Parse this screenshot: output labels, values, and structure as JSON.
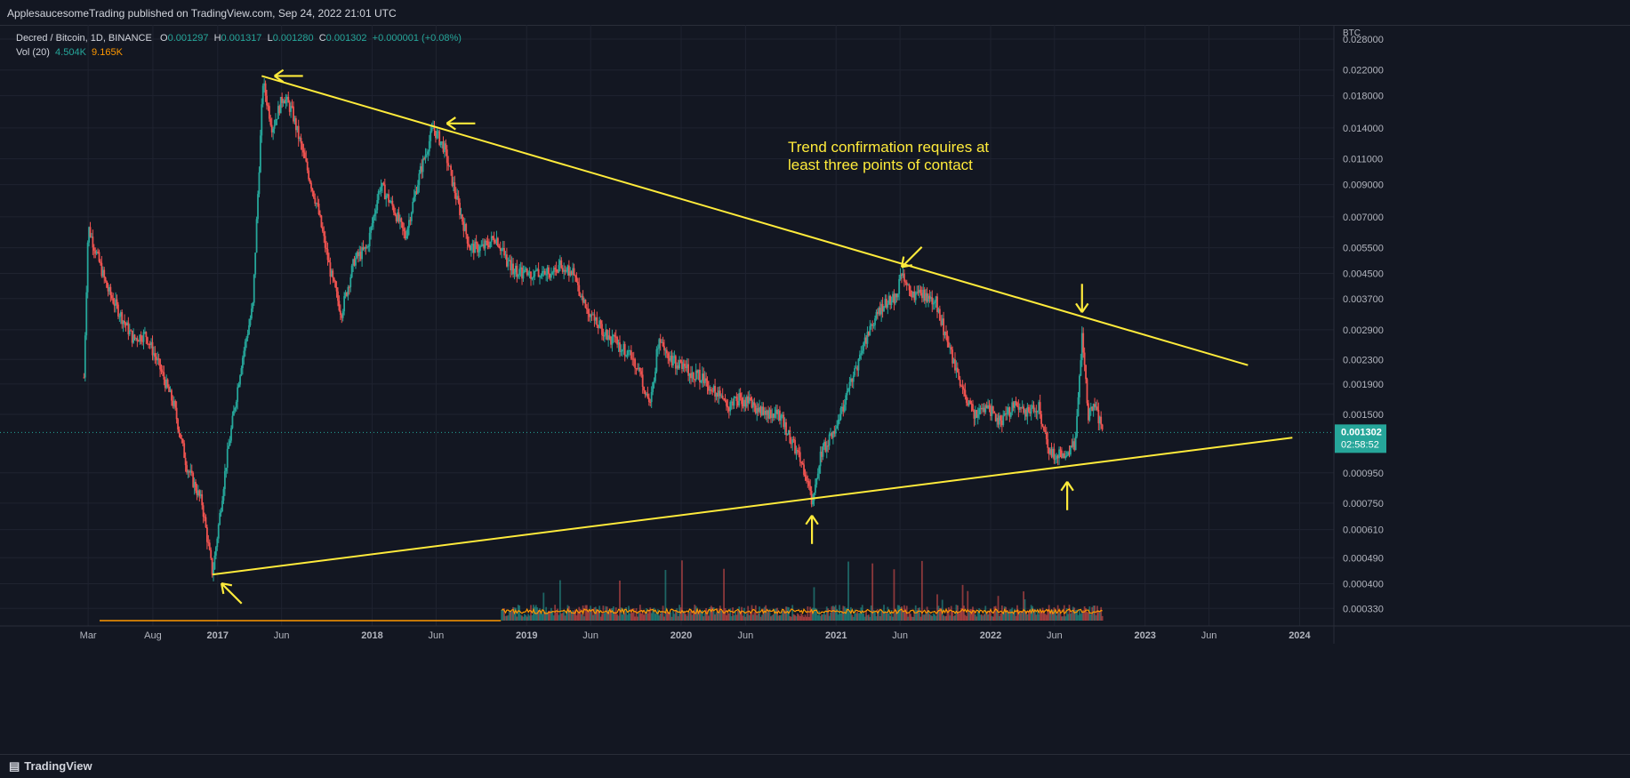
{
  "header": {
    "published": "ApplesaucesomeTrading published on TradingView.com, Sep 24, 2022 21:01 UTC"
  },
  "legend": {
    "symbol": "Decred / Bitcoin, 1D, BINANCE",
    "o_label": "O",
    "o": "0.001297",
    "h_label": "H",
    "h": "0.001317",
    "l_label": "L",
    "l": "0.001280",
    "c_label": "C",
    "c": "0.001302",
    "change": "+0.000001 (+0.08%)",
    "vol_label": "Vol (20)",
    "vol": "4.504K",
    "vol_ma": "9.165K"
  },
  "footer": {
    "brand": "TradingView"
  },
  "colors": {
    "background": "#131722",
    "up": "#26a69a",
    "down": "#ef5350",
    "trendline": "#ffeb3b",
    "volume_ma": "#ff9800",
    "price_tag": "#26a69a"
  },
  "chart_data": {
    "type": "candlestick",
    "symbol": "DCR/BTC",
    "timeframe": "1D",
    "exchange": "BINANCE",
    "y_unit": "BTC",
    "y_scale": "log",
    "ylim": [
      0.0003,
      0.03
    ],
    "xlim": [
      "2016-02-15",
      "2024-03-01"
    ],
    "y_ticks": [
      0.028,
      0.022,
      0.018,
      0.014,
      0.011,
      0.009,
      0.007,
      0.0055,
      0.0045,
      0.0037,
      0.0029,
      0.0023,
      0.0019,
      0.0015,
      0.00095,
      0.00075,
      0.00061,
      0.00049,
      0.0004,
      0.00033
    ],
    "y_tick_labels": [
      "0.028000",
      "0.022000",
      "0.018000",
      "0.014000",
      "0.011000",
      "0.009000",
      "0.007000",
      "0.005500",
      "0.004500",
      "0.003700",
      "0.002900",
      "0.002300",
      "0.001900",
      "0.001500",
      "0.000950",
      "0.000750",
      "0.000610",
      "0.000490",
      "0.000400",
      "0.000330"
    ],
    "x_ticks": [
      {
        "label": "Mar",
        "date": "2016-03-01"
      },
      {
        "label": "Aug",
        "date": "2016-08-01"
      },
      {
        "label": "2017",
        "date": "2017-01-01"
      },
      {
        "label": "Jun",
        "date": "2017-06-01"
      },
      {
        "label": "2018",
        "date": "2018-01-01"
      },
      {
        "label": "Jun",
        "date": "2018-06-01"
      },
      {
        "label": "2019",
        "date": "2019-01-01"
      },
      {
        "label": "Jun",
        "date": "2019-06-01"
      },
      {
        "label": "2020",
        "date": "2020-01-01"
      },
      {
        "label": "Jun",
        "date": "2020-06-01"
      },
      {
        "label": "2021",
        "date": "2021-01-01"
      },
      {
        "label": "Jun",
        "date": "2021-06-01"
      },
      {
        "label": "2022",
        "date": "2022-01-01"
      },
      {
        "label": "Jun",
        "date": "2022-06-01"
      },
      {
        "label": "2023",
        "date": "2023-01-01"
      },
      {
        "label": "Jun",
        "date": "2023-06-01"
      },
      {
        "label": "2024",
        "date": "2024-01-01"
      }
    ],
    "price_path": [
      [
        "2016-02-20",
        0.002
      ],
      [
        "2016-03-01",
        0.0065
      ],
      [
        "2016-04-15",
        0.004
      ],
      [
        "2016-05-10",
        0.0034
      ],
      [
        "2016-06-15",
        0.0027
      ],
      [
        "2016-07-15",
        0.0028
      ],
      [
        "2016-08-15",
        0.0022
      ],
      [
        "2016-09-20",
        0.0016
      ],
      [
        "2016-10-20",
        0.001
      ],
      [
        "2016-11-25",
        0.00075
      ],
      [
        "2016-12-20",
        0.00043
      ],
      [
        "2017-01-20",
        0.001
      ],
      [
        "2017-02-25",
        0.0022
      ],
      [
        "2017-03-25",
        0.0035
      ],
      [
        "2017-04-18",
        0.02
      ],
      [
        "2017-05-10",
        0.014
      ],
      [
        "2017-06-05",
        0.018
      ],
      [
        "2017-06-25",
        0.016
      ],
      [
        "2017-07-25",
        0.011
      ],
      [
        "2017-08-25",
        0.0075
      ],
      [
        "2017-09-25",
        0.0045
      ],
      [
        "2017-10-20",
        0.0033
      ],
      [
        "2017-11-20",
        0.005
      ],
      [
        "2017-12-20",
        0.0055
      ],
      [
        "2018-01-20",
        0.009
      ],
      [
        "2018-02-20",
        0.0075
      ],
      [
        "2018-03-20",
        0.006
      ],
      [
        "2018-04-25",
        0.01
      ],
      [
        "2018-05-25",
        0.014
      ],
      [
        "2018-06-20",
        0.012
      ],
      [
        "2018-07-20",
        0.008
      ],
      [
        "2018-08-20",
        0.0055
      ],
      [
        "2018-09-20",
        0.0055
      ],
      [
        "2018-10-20",
        0.006
      ],
      [
        "2018-11-20",
        0.0048
      ],
      [
        "2018-12-20",
        0.0045
      ],
      [
        "2019-01-20",
        0.0045
      ],
      [
        "2019-02-20",
        0.0045
      ],
      [
        "2019-03-20",
        0.0048
      ],
      [
        "2019-04-20",
        0.0045
      ],
      [
        "2019-05-20",
        0.0035
      ],
      [
        "2019-06-20",
        0.003
      ],
      [
        "2019-07-20",
        0.0027
      ],
      [
        "2019-08-20",
        0.0025
      ],
      [
        "2019-09-20",
        0.0022
      ],
      [
        "2019-10-20",
        0.0016
      ],
      [
        "2019-11-10",
        0.0028
      ],
      [
        "2019-12-10",
        0.0023
      ],
      [
        "2020-01-20",
        0.0021
      ],
      [
        "2020-02-20",
        0.002
      ],
      [
        "2020-03-20",
        0.0018
      ],
      [
        "2020-04-20",
        0.0016
      ],
      [
        "2020-05-20",
        0.0017
      ],
      [
        "2020-06-20",
        0.0016
      ],
      [
        "2020-07-20",
        0.0015
      ],
      [
        "2020-08-20",
        0.0015
      ],
      [
        "2020-09-20",
        0.0012
      ],
      [
        "2020-10-20",
        0.00095
      ],
      [
        "2020-11-05",
        0.00075
      ],
      [
        "2020-11-25",
        0.0011
      ],
      [
        "2020-12-25",
        0.0013
      ],
      [
        "2021-01-25",
        0.0017
      ],
      [
        "2021-02-20",
        0.0022
      ],
      [
        "2021-03-20",
        0.0029
      ],
      [
        "2021-04-20",
        0.0035
      ],
      [
        "2021-05-20",
        0.0037
      ],
      [
        "2021-06-05",
        0.0045
      ],
      [
        "2021-06-25",
        0.0038
      ],
      [
        "2021-07-25",
        0.0038
      ],
      [
        "2021-08-25",
        0.0036
      ],
      [
        "2021-09-25",
        0.0025
      ],
      [
        "2021-10-25",
        0.0018
      ],
      [
        "2021-11-25",
        0.0015
      ],
      [
        "2021-12-25",
        0.0016
      ],
      [
        "2022-01-25",
        0.0014
      ],
      [
        "2022-02-25",
        0.0016
      ],
      [
        "2022-03-25",
        0.0015
      ],
      [
        "2022-04-25",
        0.0016
      ],
      [
        "2022-05-20",
        0.0011
      ],
      [
        "2022-06-20",
        0.0011
      ],
      [
        "2022-07-20",
        0.0012
      ],
      [
        "2022-08-05",
        0.0028
      ],
      [
        "2022-08-20",
        0.0015
      ],
      [
        "2022-09-05",
        0.0016
      ],
      [
        "2022-09-24",
        0.001302
      ]
    ],
    "trendlines": [
      {
        "name": "resistance",
        "from": [
          "2017-04-15",
          0.021
        ],
        "to": [
          "2023-09-01",
          0.0022
        ]
      },
      {
        "name": "support",
        "from": [
          "2016-12-20",
          0.00043
        ],
        "to": [
          "2023-12-15",
          0.00125
        ]
      }
    ],
    "annotation": "Trend confirmation requires at\nleast three points of contact",
    "touch_arrows": [
      {
        "date": "2017-04-20",
        "price": 0.021,
        "dir": "left"
      },
      {
        "date": "2018-06-01",
        "price": 0.0145,
        "dir": "left"
      },
      {
        "date": "2021-06-05",
        "price": 0.0046,
        "dir": "down-left"
      },
      {
        "date": "2022-08-05",
        "price": 0.0031,
        "dir": "down"
      },
      {
        "date": "2016-12-20",
        "price": 0.00043,
        "dir": "up-left"
      },
      {
        "date": "2020-11-05",
        "price": 0.00073,
        "dir": "up"
      },
      {
        "date": "2022-07-01",
        "price": 0.00095,
        "dir": "up"
      }
    ],
    "last_price": {
      "label": "0.001302",
      "countdown": "02:58:52",
      "value": 0.001302
    },
    "volume_start": "2018-11-01"
  }
}
